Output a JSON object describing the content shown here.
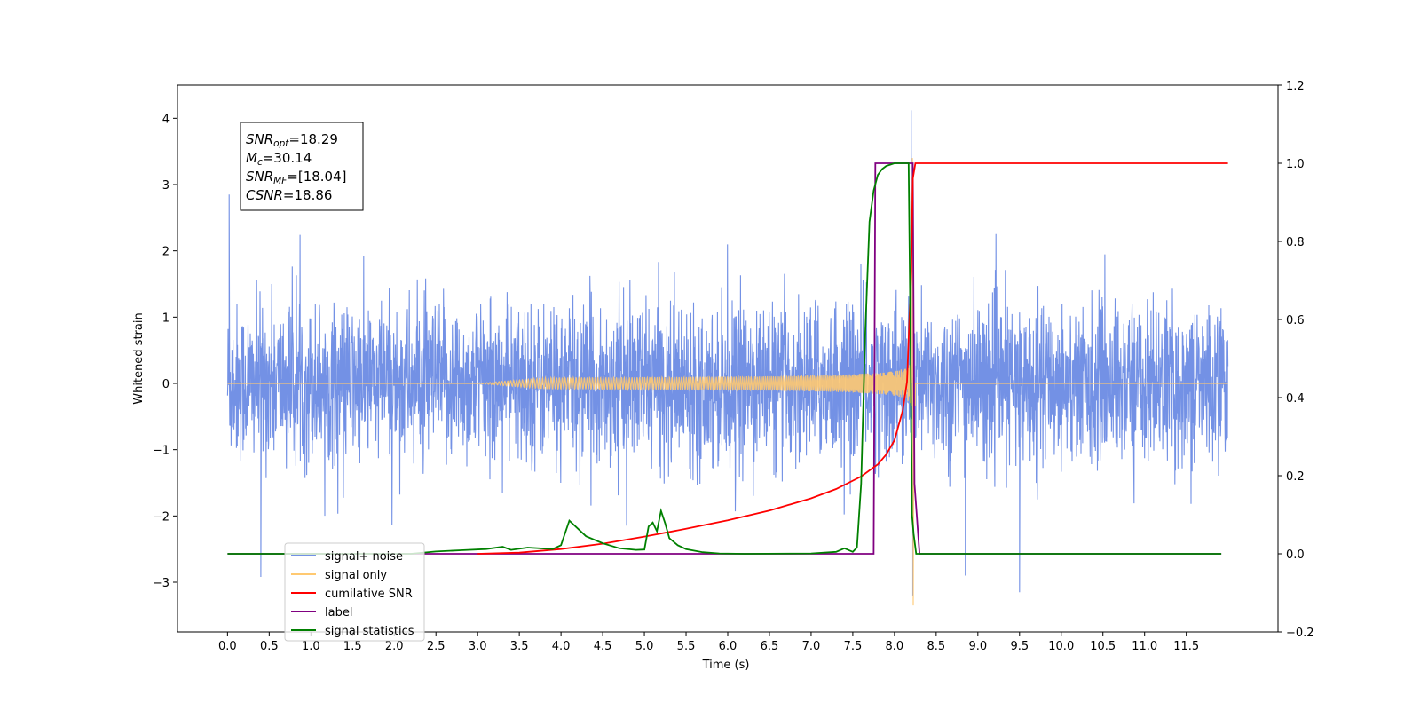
{
  "chart_data": {
    "type": "line",
    "xlabel": "Time (s)",
    "ylabel": "Whitened strain",
    "xlim": [
      -0.6,
      12.6
    ],
    "ylim": [
      -3.75,
      4.5
    ],
    "y2lim": [
      -0.2,
      1.2
    ],
    "x_ticks": [
      0.0,
      0.5,
      1.0,
      1.5,
      2.0,
      2.5,
      3.0,
      3.5,
      4.0,
      4.5,
      5.0,
      5.5,
      6.0,
      6.5,
      7.0,
      7.5,
      8.0,
      8.5,
      9.0,
      9.5,
      10.0,
      10.5,
      11.0,
      11.5
    ],
    "x_tick_labels": [
      "0.0",
      "0.5",
      "1.0",
      "1.5",
      "2.0",
      "2.5",
      "3.0",
      "3.5",
      "4.0",
      "4.5",
      "5.0",
      "5.5",
      "6.0",
      "6.5",
      "7.0",
      "7.5",
      "8.0",
      "8.5",
      "9.0",
      "9.5",
      "10.0",
      "10.5",
      "11.0",
      "11.5"
    ],
    "y_ticks": [
      -3,
      -2,
      -1,
      0,
      1,
      2,
      3,
      4
    ],
    "y_tick_labels": [
      "−3",
      "−2",
      "−1",
      "0",
      "1",
      "2",
      "3",
      "4"
    ],
    "y2_ticks": [
      -0.2,
      0.0,
      0.2,
      0.4,
      0.6,
      0.8,
      1.0,
      1.2
    ],
    "y2_tick_labels": [
      "−0.2",
      "0.0",
      "0.2",
      "0.4",
      "0.6",
      "0.8",
      "1.0",
      "1.2"
    ],
    "grid": false,
    "legend_position": "lower-left",
    "annotation": {
      "lines": [
        {
          "main": "SNR",
          "sub": "opt",
          "rest": "=18.29"
        },
        {
          "main": "M",
          "sub": "c",
          "rest": "=30.14"
        },
        {
          "main": "SNR",
          "sub": "MF",
          "rest": "=[18.04]"
        },
        {
          "main": "CSNR",
          "sub": "",
          "rest": "=18.86"
        }
      ]
    },
    "series": [
      {
        "name": "signal+ noise",
        "axis": "left",
        "color": "#7391e5",
        "description_x_range": [
          0.0,
          12.0
        ],
        "noise_std": 0.95,
        "notable_peaks": [
          [
            0.02,
            2.85
          ],
          [
            8.2,
            4.12
          ],
          [
            8.22,
            -3.2
          ],
          [
            0.4,
            -2.92
          ],
          [
            9.5,
            -3.15
          ],
          [
            8.85,
            -2.9
          ]
        ]
      },
      {
        "name": "signal only",
        "axis": "left",
        "color": "#ffc971",
        "chirp_start": 3.5,
        "merger_time": 8.22,
        "peak_amplitude": 3.4,
        "min_amplitude": -3.35
      },
      {
        "name": "cumilative SNR",
        "axis": "right",
        "color": "#ff0000",
        "x": [
          3.0,
          3.5,
          4.0,
          4.5,
          5.0,
          5.5,
          6.0,
          6.5,
          7.0,
          7.3,
          7.6,
          7.8,
          7.9,
          8.0,
          8.1,
          8.15,
          8.2,
          8.22,
          8.25,
          12.0
        ],
        "y": [
          0.0,
          0.003,
          0.012,
          0.026,
          0.044,
          0.064,
          0.086,
          0.111,
          0.142,
          0.166,
          0.198,
          0.229,
          0.254,
          0.291,
          0.368,
          0.441,
          0.72,
          0.96,
          1.0,
          1.0
        ]
      },
      {
        "name": "label",
        "axis": "right",
        "color": "#800080",
        "x": [
          0.0,
          7.75,
          7.77,
          8.22,
          8.24,
          8.3,
          8.32,
          11.92
        ],
        "y": [
          0.0,
          0.0,
          1.0,
          1.0,
          0.18,
          0.0,
          0.0,
          0.0
        ]
      },
      {
        "name": "signal statistics",
        "axis": "right",
        "color": "#008000",
        "x": [
          0.0,
          2.2,
          2.5,
          2.8,
          3.1,
          3.3,
          3.4,
          3.6,
          3.9,
          4.0,
          4.1,
          4.3,
          4.5,
          4.7,
          4.9,
          5.0,
          5.05,
          5.1,
          5.15,
          5.2,
          5.25,
          5.3,
          5.4,
          5.5,
          5.7,
          5.9,
          6.2,
          7.0,
          7.3,
          7.4,
          7.5,
          7.55,
          7.6,
          7.65,
          7.7,
          7.75,
          7.8,
          7.85,
          7.9,
          8.0,
          8.05,
          8.1,
          8.17,
          8.19,
          8.21,
          8.23,
          8.26,
          8.3,
          11.92
        ],
        "y": [
          0.0,
          0.0,
          0.006,
          0.009,
          0.012,
          0.018,
          0.01,
          0.016,
          0.012,
          0.022,
          0.085,
          0.045,
          0.027,
          0.014,
          0.01,
          0.011,
          0.07,
          0.08,
          0.058,
          0.11,
          0.078,
          0.04,
          0.022,
          0.012,
          0.004,
          0.001,
          0.0,
          0.001,
          0.005,
          0.014,
          0.005,
          0.016,
          0.18,
          0.57,
          0.85,
          0.93,
          0.97,
          0.985,
          0.993,
          1.0,
          1.0,
          1.0,
          1.0,
          0.6,
          0.1,
          0.05,
          0.0,
          0.0,
          0.0
        ]
      }
    ]
  },
  "legend": {
    "items": [
      {
        "label": "signal+ noise",
        "color": "#7391e5"
      },
      {
        "label": "signal only",
        "color": "#ffc971"
      },
      {
        "label": "cumilative SNR",
        "color": "#ff0000"
      },
      {
        "label": "label",
        "color": "#800080"
      },
      {
        "label": "signal statistics",
        "color": "#008000"
      }
    ]
  }
}
